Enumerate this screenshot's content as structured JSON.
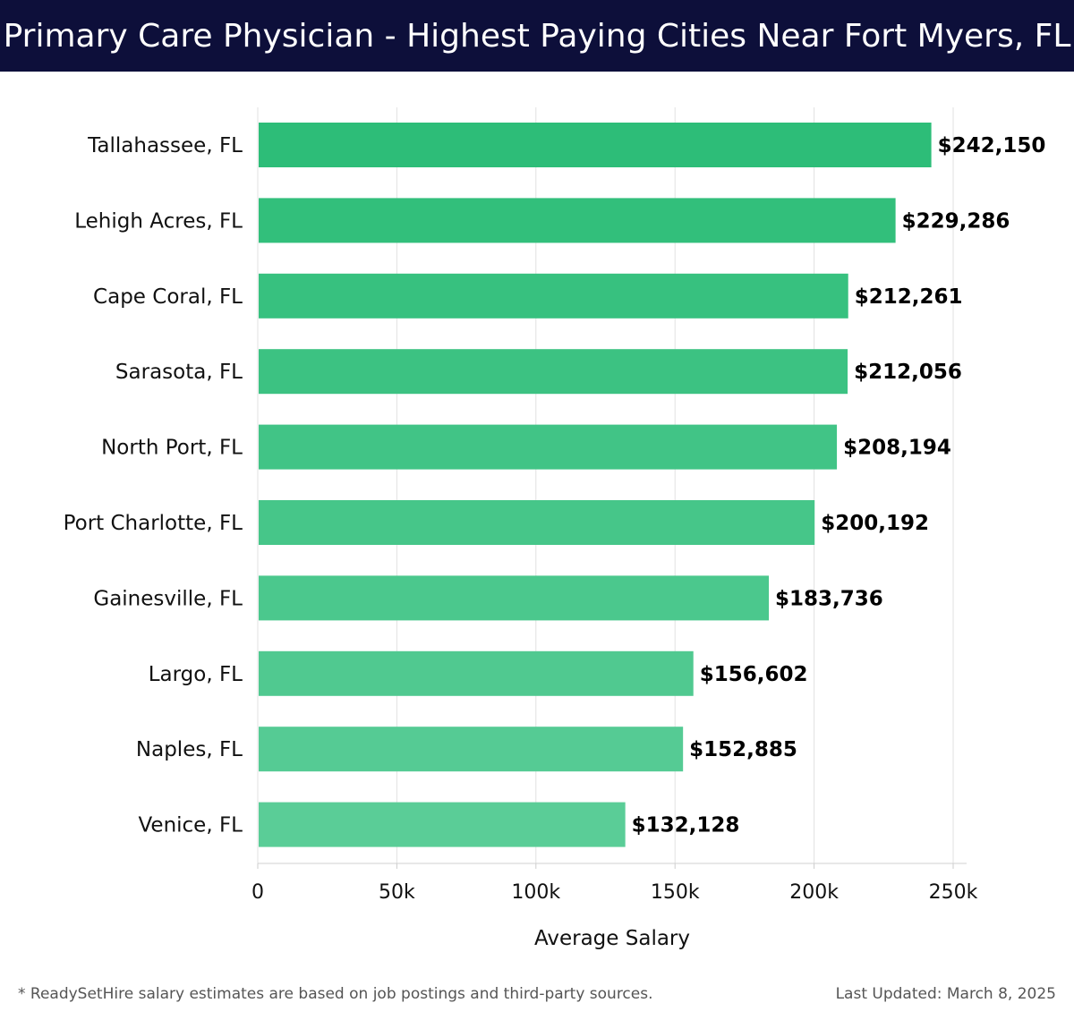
{
  "header": {
    "title": "Primary Care Physician - Highest Paying Cities Near Fort Myers, FL"
  },
  "colors": {
    "header_bg": "#0d0f3a",
    "bar_top": "#2dbd78",
    "bar_bottom": "#5acd97",
    "grid": "#e2e2e2",
    "axis_text": "#111111"
  },
  "chart_data": {
    "type": "bar",
    "orientation": "horizontal",
    "title": "Primary Care Physician - Highest Paying Cities Near Fort Myers, FL",
    "xlabel": "Average Salary",
    "ylabel": "",
    "xlim": [
      0,
      255000
    ],
    "grid": true,
    "categories": [
      "Tallahassee, FL",
      "Lehigh Acres, FL",
      "Cape Coral, FL",
      "Sarasota, FL",
      "North Port, FL",
      "Port Charlotte, FL",
      "Gainesville, FL",
      "Largo, FL",
      "Naples, FL",
      "Venice, FL"
    ],
    "values": [
      242150,
      229286,
      212261,
      212056,
      208194,
      200192,
      183736,
      156602,
      152885,
      132128
    ],
    "value_labels": [
      "$242,150",
      "$229,286",
      "$212,261",
      "$212,056",
      "$208,194",
      "$200,192",
      "$183,736",
      "$156,602",
      "$152,885",
      "$132,128"
    ],
    "ticks": [
      0,
      50000,
      100000,
      150000,
      200000,
      250000
    ],
    "tick_labels": [
      "0",
      "50k",
      "100k",
      "150k",
      "200k",
      "250k"
    ]
  },
  "footer": {
    "note": "* ReadySetHire salary estimates are based on job postings and third-party sources.",
    "updated": "Last Updated: March 8, 2025"
  }
}
